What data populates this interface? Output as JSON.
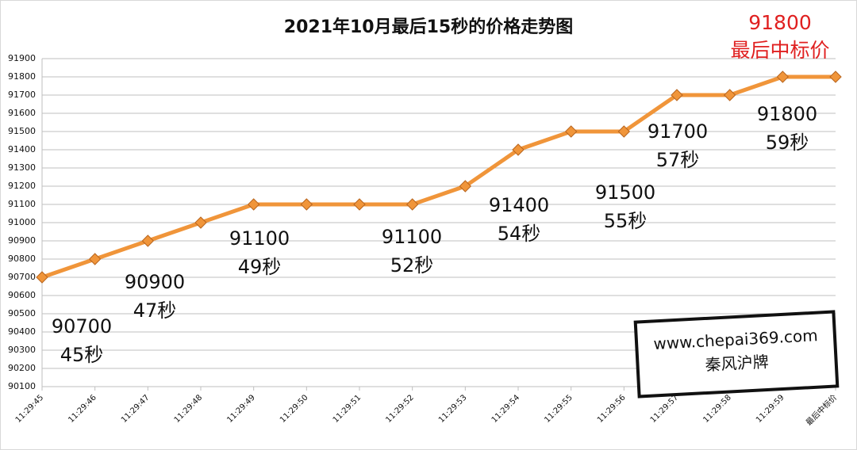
{
  "chart_data": {
    "type": "line",
    "title": "2021年10月最后15秒的价格走势图",
    "categories": [
      "11:29:45",
      "11:29:46",
      "11:29:47",
      "11:29:48",
      "11:29:49",
      "11:29:50",
      "11:29:51",
      "11:29:52",
      "11:29:53",
      "11:29:54",
      "11:29:55",
      "11:29:56",
      "11:29:57",
      "11:29:58",
      "11:29:59",
      "最后中标价"
    ],
    "series": [
      {
        "color": "#f0953a",
        "values": [
          90700,
          90800,
          90900,
          91000,
          91100,
          91100,
          91100,
          91100,
          91200,
          91400,
          91500,
          91500,
          91700,
          91700,
          91800,
          91800
        ]
      }
    ],
    "ylim": [
      90100,
      91900
    ],
    "yticks": [
      90100,
      90200,
      90300,
      90400,
      90500,
      90600,
      90700,
      90800,
      90900,
      91000,
      91100,
      91200,
      91300,
      91400,
      91500,
      91600,
      91700,
      91800,
      91900
    ],
    "grid": true,
    "annotations": [
      {
        "lines": [
          "90700",
          "45秒"
        ]
      },
      {
        "lines": [
          "90900",
          "47秒"
        ]
      },
      {
        "lines": [
          "91100",
          "49秒"
        ]
      },
      {
        "lines": [
          "91100",
          "52秒"
        ]
      },
      {
        "lines": [
          "91400",
          "54秒"
        ]
      },
      {
        "lines": [
          "91500",
          "55秒"
        ]
      },
      {
        "lines": [
          "91700",
          "57秒"
        ]
      },
      {
        "lines": [
          "91800",
          "59秒"
        ]
      }
    ],
    "final_note": {
      "lines": [
        "91800",
        "最后中标价"
      ],
      "color": "#e02020"
    },
    "watermark": {
      "lines": [
        "www.chepai369.com",
        "秦风沪牌"
      ]
    }
  }
}
